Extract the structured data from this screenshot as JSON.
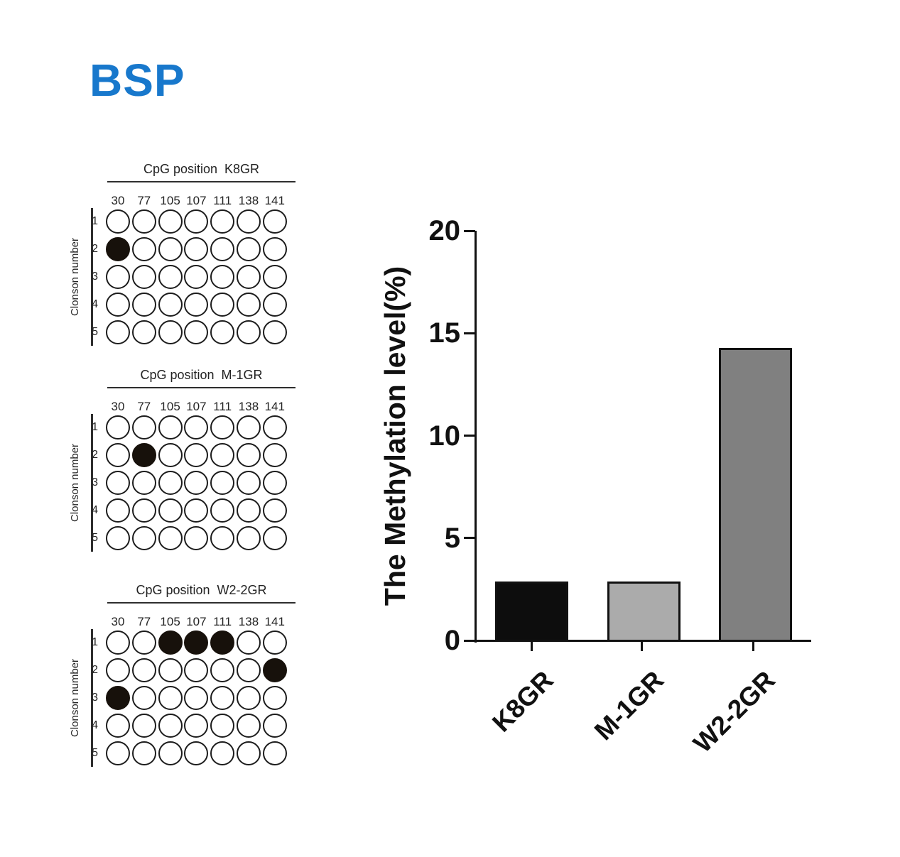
{
  "page_title": "BSP",
  "colors": {
    "title": "#1878cc",
    "ink": "#111111",
    "bar_fills": [
      "#0d0d0d",
      "#ababab",
      "#808080"
    ],
    "bar_outline": "#111111"
  },
  "cpg_panels": [
    {
      "title_prefix": "CpG position",
      "sample": "K8GR",
      "side_label": "Clonson number",
      "positions": [
        "30",
        "77",
        "105",
        "107",
        "111",
        "138",
        "141"
      ],
      "clone_numbers": [
        "1",
        "2",
        "3",
        "4",
        "5"
      ],
      "filled_cells": [
        [
          2,
          "30"
        ]
      ]
    },
    {
      "title_prefix": "CpG position",
      "sample": "M-1GR",
      "side_label": "Clonson number",
      "positions": [
        "30",
        "77",
        "105",
        "107",
        "111",
        "138",
        "141"
      ],
      "clone_numbers": [
        "1",
        "2",
        "3",
        "4",
        "5"
      ],
      "filled_cells": [
        [
          2,
          "77"
        ]
      ]
    },
    {
      "title_prefix": "CpG position",
      "sample": "W2-2GR",
      "side_label": "Clonson number",
      "positions": [
        "30",
        "77",
        "105",
        "107",
        "111",
        "138",
        "141"
      ],
      "clone_numbers": [
        "1",
        "2",
        "3",
        "4",
        "5"
      ],
      "filled_cells": [
        [
          1,
          "105"
        ],
        [
          1,
          "107"
        ],
        [
          1,
          "111"
        ],
        [
          2,
          "141"
        ],
        [
          3,
          "30"
        ]
      ]
    }
  ],
  "chart_data": {
    "type": "bar",
    "categories": [
      "K8GR",
      "M-1GR",
      "W2-2GR"
    ],
    "values": [
      2.86,
      2.86,
      14.29
    ],
    "title": "",
    "xlabel": "",
    "ylabel": "The Methylation level(%)",
    "ylim": [
      0,
      20
    ],
    "yticks": [
      20,
      15,
      10,
      5,
      0
    ],
    "grid": false,
    "legend": "none",
    "bar_fills": [
      "#0d0d0d",
      "#ababab",
      "#808080"
    ],
    "bar_outline": "#111111"
  }
}
